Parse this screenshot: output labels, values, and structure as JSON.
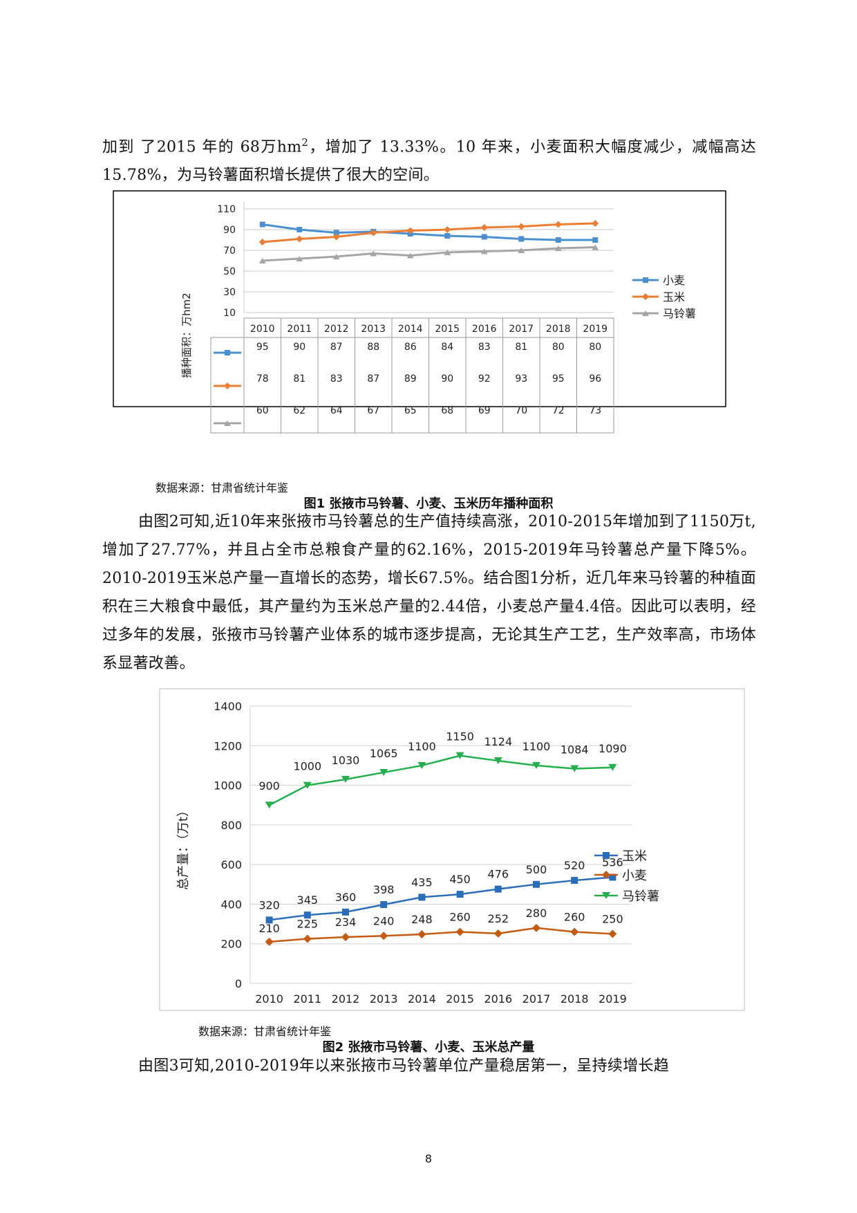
{
  "text": {
    "para1_a": "加到 了2015 年的 68万hm",
    "para1_sup": "2",
    "para1_b": "，增加了 13.33%。10 年来，小麦面积大幅度减少，减幅高达15.78%，为马铃薯面积增长提供了很大的空间。",
    "para2": "由图2可知,近10年来张掖市马铃薯总的生产值持续高涨，2010-2015年增加到了1150万t,增加了27.77%，并且占全市总粮食产量的62.16%，2015-2019年马铃薯总产量下降5%。2010-2019玉米总产量一直增长的态势，增长67.5%。结合图1分析，近几年来马铃薯的种植面积在三大粮食中最低，其产量约为玉米总产量的2.44倍，小麦总产量4.4倍。因此可以表明，经过多年的发展，张掖市马铃薯产业体系的城市逐步提高，无论其生产工艺，生产效率高，市场体系显著改善。",
    "para3": "由图3可知,2010-2019年以来张掖市马铃薯单位产量稳居第一，呈持续增长趋",
    "source1": "数据来源：甘肃省统计年鉴",
    "caption1": "图1    张掖市马铃薯、小麦、玉米历年播种面积",
    "source2": "数据来源：甘肃省统计年鉴",
    "caption2": "图2    张掖市马铃薯、小麦、玉米总产量",
    "page_number": "8"
  },
  "chart_data": [
    {
      "type": "line",
      "title": "张掖市马铃薯、小麦、玉米历年播种面积",
      "ylabel": "播种面积：万hm2",
      "xlabel": "",
      "categories": [
        "2010",
        "2011",
        "2012",
        "2013",
        "2014",
        "2015",
        "2016",
        "2017",
        "2018",
        "2019"
      ],
      "yticks": [
        10,
        30,
        50,
        70,
        90,
        110
      ],
      "ylim": [
        10,
        110
      ],
      "legend_position": "right",
      "data_table": true,
      "series": [
        {
          "name": "小麦",
          "color": "#4a90d0",
          "marker": "square",
          "values": [
            95,
            90,
            87,
            88,
            86,
            84,
            83,
            81,
            80,
            80
          ]
        },
        {
          "name": "玉米",
          "color": "#ed7d31",
          "marker": "diamond",
          "values": [
            78,
            81,
            83,
            87,
            89,
            90,
            92,
            93,
            95,
            96
          ]
        },
        {
          "name": "马铃薯",
          "color": "#a5a5a5",
          "marker": "triangle",
          "values": [
            60,
            62,
            64,
            67,
            65,
            68,
            69,
            70,
            72,
            73
          ]
        }
      ]
    },
    {
      "type": "line",
      "title": "张掖市马铃薯、小麦、玉米总产量",
      "ylabel": "总产量：（万t）",
      "xlabel": "",
      "categories": [
        "2010",
        "2011",
        "2012",
        "2013",
        "2014",
        "2015",
        "2016",
        "2017",
        "2018",
        "2019"
      ],
      "yticks": [
        0,
        200,
        400,
        600,
        800,
        1000,
        1200,
        1400
      ],
      "ylim": [
        0,
        1400
      ],
      "legend_position": "right",
      "data_labels": true,
      "series": [
        {
          "name": "玉米",
          "color": "#2a6ebb",
          "marker": "square",
          "values": [
            320,
            345,
            360,
            398,
            435,
            450,
            476,
            500,
            520,
            536
          ]
        },
        {
          "name": "小麦",
          "color": "#c55a11",
          "marker": "diamond",
          "values": [
            210,
            225,
            234,
            240,
            248,
            260,
            252,
            280,
            260,
            250
          ]
        },
        {
          "name": "马铃薯",
          "color": "#21b04b",
          "marker": "triangle-down",
          "values": [
            900,
            1000,
            1030,
            1065,
            1100,
            1150,
            1124,
            1100,
            1084,
            1090
          ]
        }
      ]
    }
  ]
}
